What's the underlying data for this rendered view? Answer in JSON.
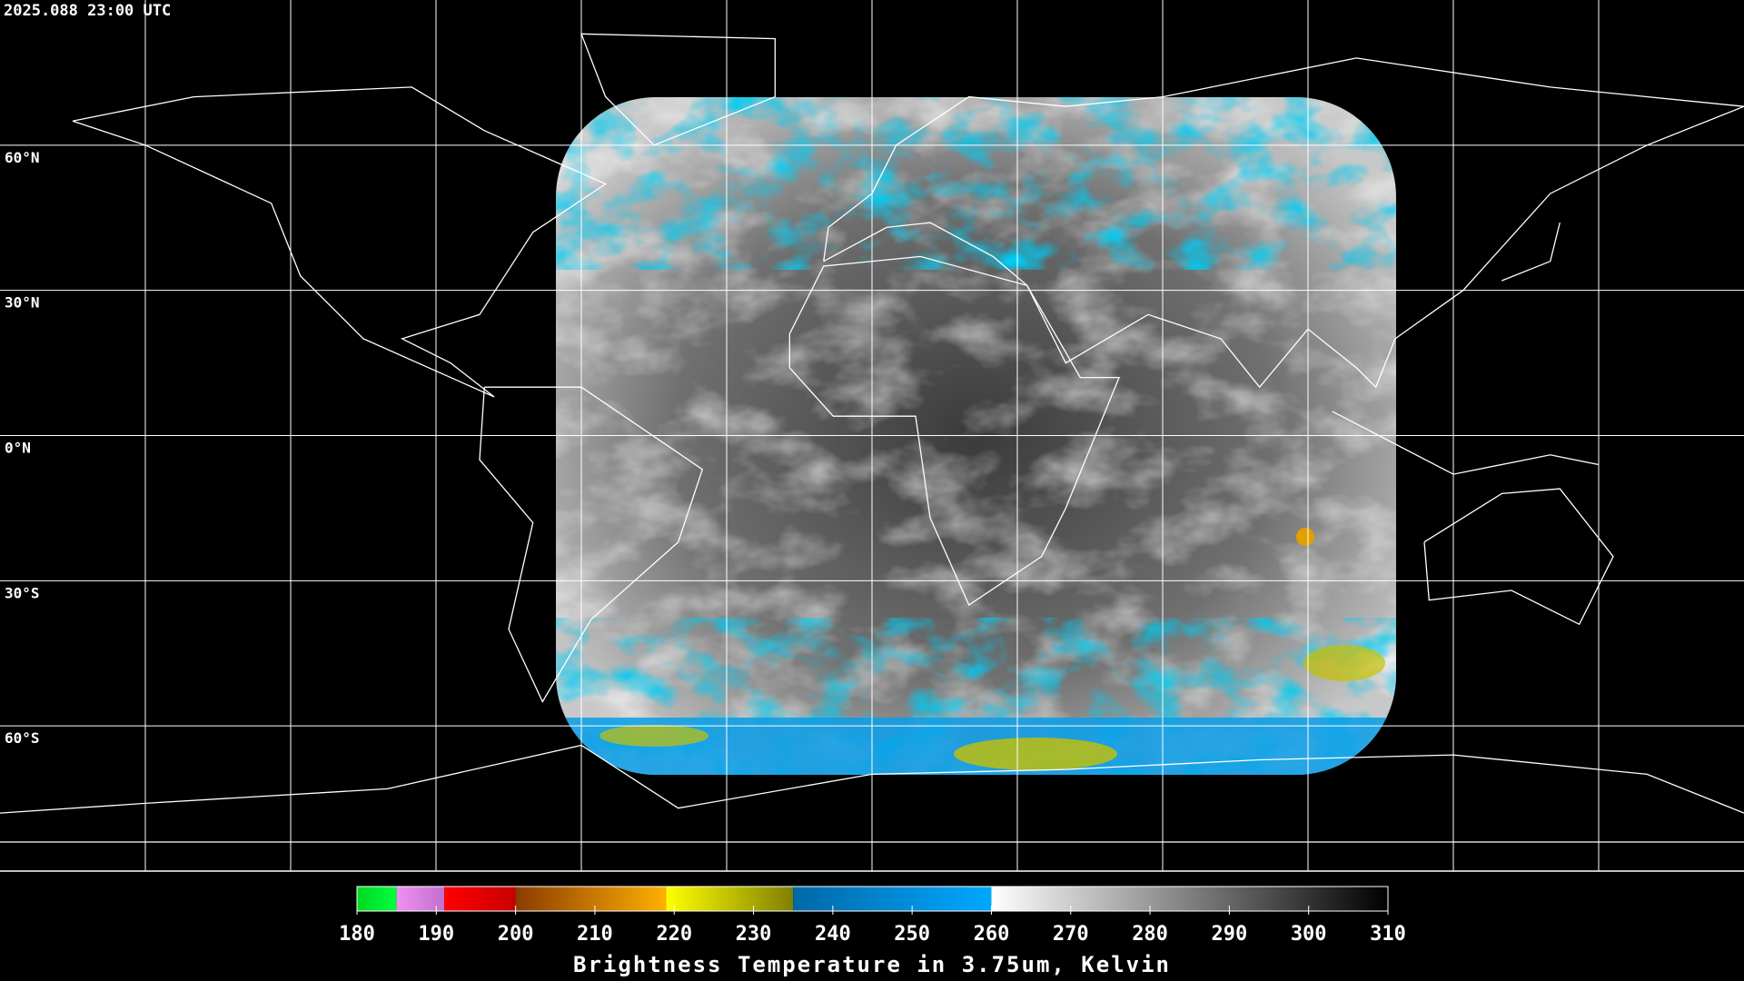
{
  "header": {
    "title": "2025.088 23:00 UTC"
  },
  "map": {
    "lat_labels": [
      {
        "value": 60,
        "label": "60°N"
      },
      {
        "value": 30,
        "label": "30°N"
      },
      {
        "value": 0,
        "label": "0°N"
      },
      {
        "value": -30,
        "label": "30°S"
      },
      {
        "value": -60,
        "label": "60°S"
      }
    ]
  },
  "colorbar": {
    "range": [
      180,
      310
    ],
    "ticks": [
      180,
      190,
      200,
      210,
      220,
      230,
      240,
      250,
      260,
      270,
      280,
      290,
      300,
      310
    ],
    "segments": [
      {
        "from": 180,
        "to": 185,
        "colors": [
          "#00d820",
          "#00ff40"
        ]
      },
      {
        "from": 185,
        "to": 191,
        "colors": [
          "#f090f0",
          "#c070d0"
        ]
      },
      {
        "from": 191,
        "to": 200,
        "colors": [
          "#ff0000",
          "#c80000"
        ]
      },
      {
        "from": 200,
        "to": 219,
        "colors": [
          "#8a3c00",
          "#ffb000"
        ]
      },
      {
        "from": 219,
        "to": 235,
        "colors": [
          "#ffff00",
          "#808000"
        ]
      },
      {
        "from": 235,
        "to": 260,
        "colors": [
          "#0068a8",
          "#00a8ff"
        ]
      },
      {
        "from": 260,
        "to": 310,
        "colors": [
          "#ffffff",
          "#000000"
        ]
      }
    ],
    "label": "Brightness Temperature in 3.75um, Kelvin"
  }
}
